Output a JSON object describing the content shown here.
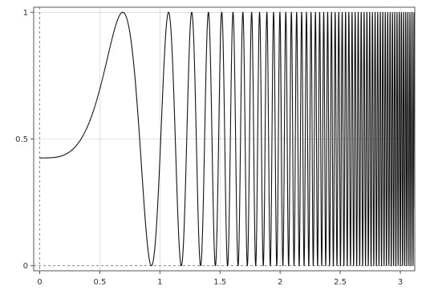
{
  "chart_data": {
    "type": "line",
    "title": "",
    "xlabel": "",
    "ylabel": "",
    "xlim": [
      -0.05,
      3.12
    ],
    "ylim": [
      -0.02,
      1.02
    ],
    "x_ticks": [
      {
        "value": 0,
        "label": "0"
      },
      {
        "value": 0.5,
        "label": "0.5"
      },
      {
        "value": 1,
        "label": "1"
      },
      {
        "value": 1.5,
        "label": "1.5"
      },
      {
        "value": 2,
        "label": "2"
      },
      {
        "value": 2.5,
        "label": "2.5"
      },
      {
        "value": 3,
        "label": "3"
      }
    ],
    "y_ticks": [
      {
        "value": 0,
        "label": "0"
      },
      {
        "value": 0.5,
        "label": "0.5"
      },
      {
        "value": 1,
        "label": "1"
      }
    ],
    "grid": true,
    "dashed_guides": {
      "x": 0,
      "y": 0
    },
    "series": [
      {
        "function": "(1 + sin(2*pi*x^3.5 - 0.15)) / 2",
        "x_range": [
          0,
          3.12
        ],
        "sample_step": 0.0005,
        "color": "#111111"
      }
    ],
    "colors": {
      "line": "#111111",
      "frame": "#555555",
      "grid": "#cccccc",
      "guide": "#888888"
    }
  }
}
